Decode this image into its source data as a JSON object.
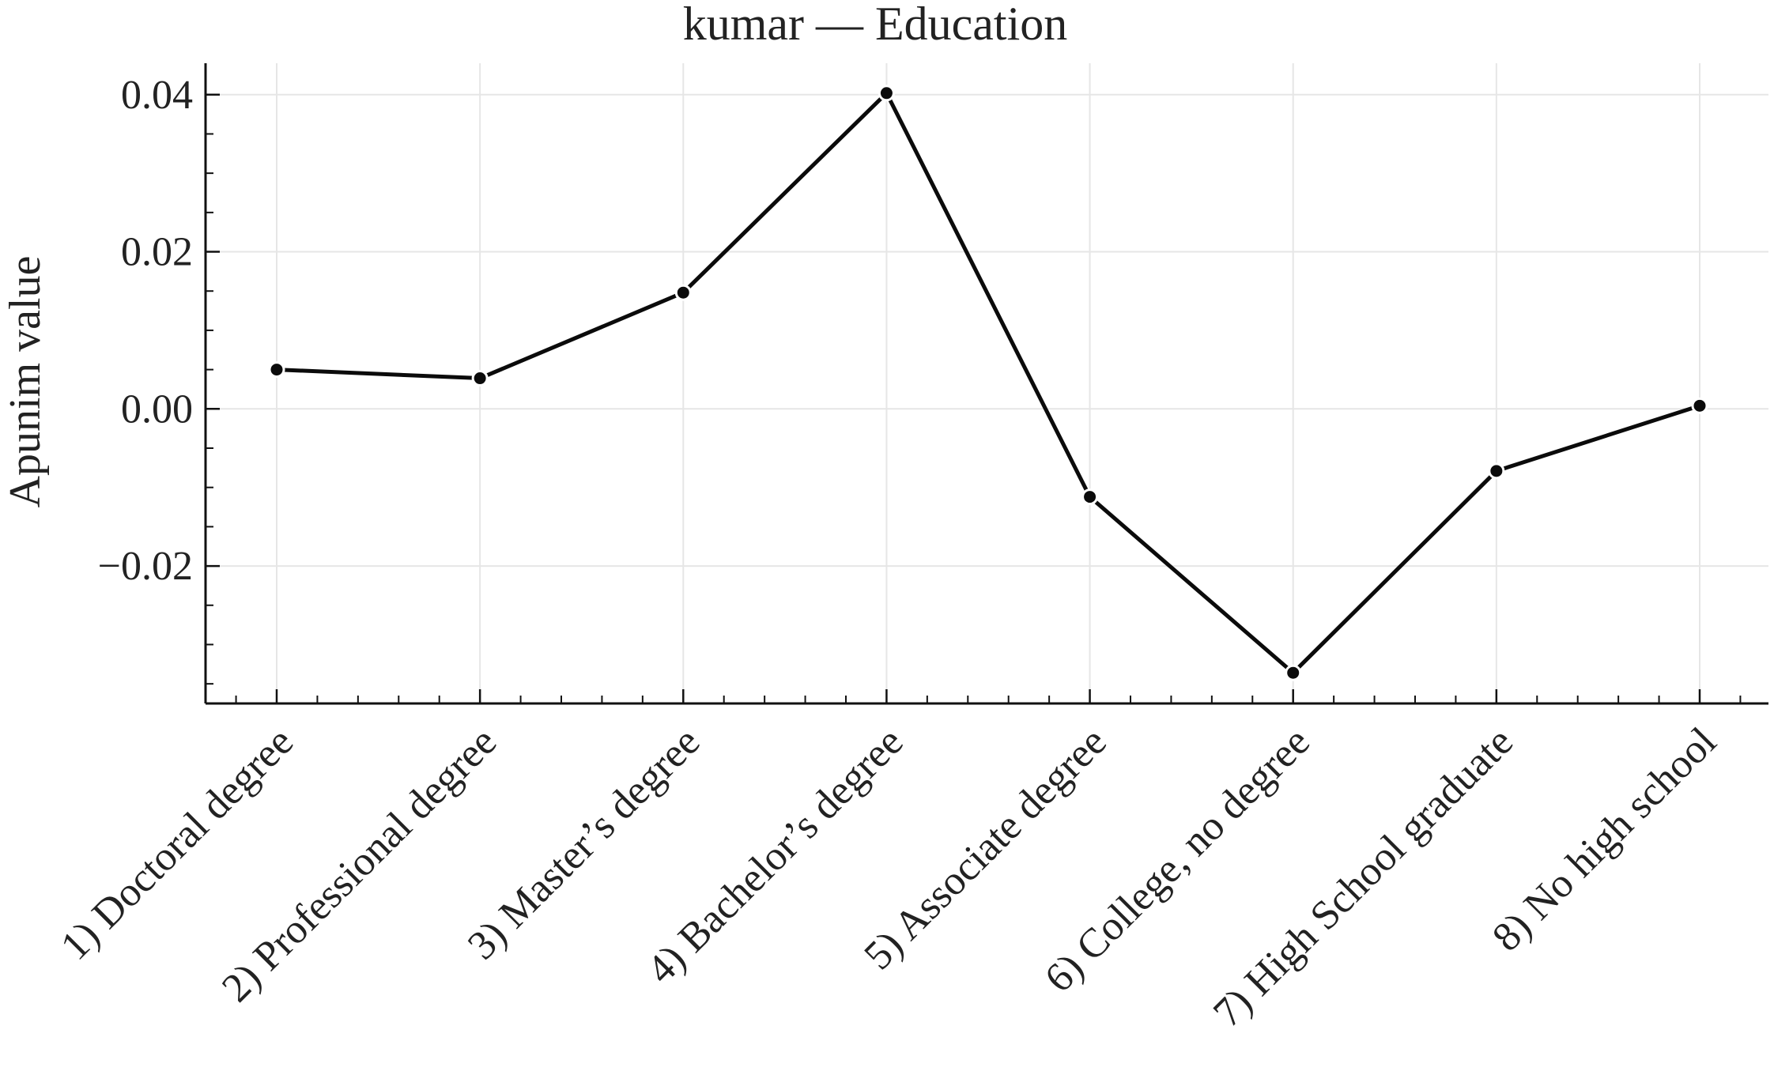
{
  "chart_data": {
    "type": "line",
    "title": "kumar — Education",
    "xlabel": "",
    "ylabel": "Apunim value",
    "categories": [
      "1) Doctoral degree",
      "2) Professional degree",
      "3) Master’s degree",
      "4) Bachelor’s degree",
      "5) Associate degree",
      "6) College, no degree",
      "7) High School graduate",
      "8) No high school"
    ],
    "series": [
      {
        "values": [
          0.005,
          0.0039,
          0.0148,
          0.0402,
          -0.0112,
          -0.0336,
          -0.0079,
          0.0004
        ]
      }
    ],
    "ylim": [
      -0.0375,
      0.044
    ],
    "y_ticks": [
      {
        "value": 0.04,
        "label": "0.04"
      },
      {
        "value": 0.02,
        "label": "0.02"
      },
      {
        "value": 0.0,
        "label": "0.00"
      },
      {
        "value": -0.02,
        "label": "−0.02"
      }
    ],
    "y_minor_step": 0.005,
    "x_minor_per_interval": 4,
    "grid": true,
    "colors": {
      "line": "#0b0b0b",
      "grid": "#e6e6e6",
      "axis": "#111111"
    }
  }
}
